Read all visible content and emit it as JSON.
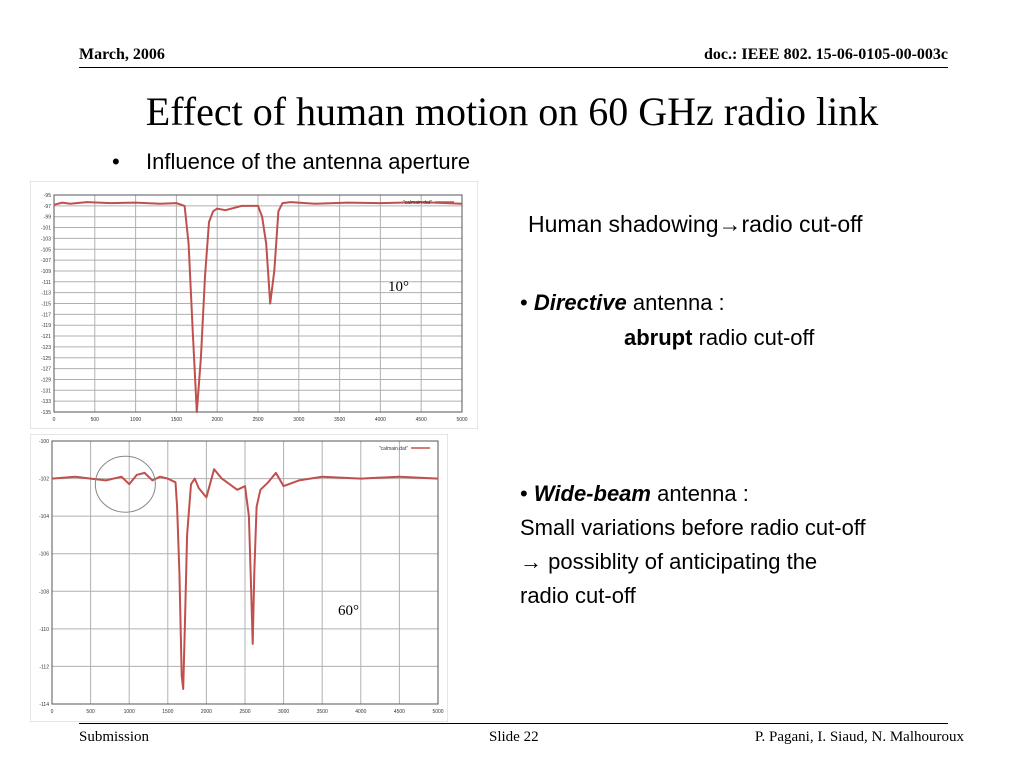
{
  "header": {
    "date": "March, 2006",
    "doc": "doc.: IEEE 802. 15-06-0105-00-003c"
  },
  "title": "Effect of human motion on 60 GHz radio link",
  "bullet": "Influence of the antenna aperture",
  "caption_human": "Human shadowing→radio cut-off",
  "directive": {
    "bold": "Directive",
    "rest": "antenna :",
    "line2_bold": "abrupt",
    "line2_rest": "radio cut-off"
  },
  "widebeam": {
    "bold": "Wide-beam",
    "rest": "antenna :",
    "line2": "Small variations before radio cut-off",
    "line3": "→ possiblity of anticipating the",
    "line4": "radio cut-off"
  },
  "footer": {
    "left": "Submission",
    "center": "Slide 22",
    "right": "P. Pagani, I. Siaud, N. Malhouroux"
  },
  "chart_data": [
    {
      "type": "line",
      "label": "10°",
      "title": "",
      "legend": "\"calmain.dat\"",
      "legend_position": "top-right",
      "grid": true,
      "xlim": [
        0,
        5000
      ],
      "xticks": [
        0,
        500,
        1000,
        1500,
        2000,
        2500,
        3000,
        3500,
        4000,
        4500,
        5000
      ],
      "ylim": [
        -135,
        -95
      ],
      "yticks": [
        -95,
        -97,
        -99,
        -101,
        -103,
        -105,
        -107,
        -109,
        -111,
        -113,
        -115,
        -117,
        -119,
        -121,
        -123,
        -125,
        -127,
        -129,
        -131,
        -133,
        -135
      ],
      "color": "#c0504d",
      "series": [
        {
          "x": [
            0,
            100,
            200,
            400,
            700,
            1000,
            1300,
            1500,
            1600,
            1650,
            1700,
            1750,
            1800,
            1850,
            1900,
            1950,
            2000,
            2100,
            2300,
            2500,
            2550,
            2600,
            2650,
            2700,
            2750,
            2800,
            2900,
            3200,
            3600,
            4000,
            4500,
            5000
          ],
          "y": [
            -96.8,
            -96.4,
            -96.6,
            -96.3,
            -96.5,
            -96.4,
            -96.6,
            -96.5,
            -97,
            -104,
            -120,
            -135,
            -125,
            -110,
            -100,
            -98,
            -97.5,
            -97.8,
            -97,
            -97,
            -99,
            -104,
            -115,
            -109,
            -98,
            -96.5,
            -96.3,
            -96.6,
            -96.4,
            -96.5,
            -96.3,
            -96.6
          ]
        }
      ]
    },
    {
      "type": "line",
      "label": "60°",
      "title": "",
      "legend": "\"calmain.dat\"",
      "legend_position": "top-right",
      "grid": true,
      "xlim": [
        0,
        5000
      ],
      "xticks": [
        0,
        500,
        1000,
        1500,
        2000,
        2500,
        3000,
        3500,
        4000,
        4500,
        5000
      ],
      "ylim": [
        -114,
        -100
      ],
      "yticks": [
        -100,
        -102,
        -104,
        -106,
        -108,
        -110,
        -112,
        -114
      ],
      "color": "#c0504d",
      "annotation": "circle around small variations before the first cut-off",
      "series": [
        {
          "x": [
            0,
            300,
            500,
            700,
            900,
            1000,
            1100,
            1200,
            1300,
            1400,
            1500,
            1600,
            1620,
            1650,
            1680,
            1700,
            1720,
            1750,
            1800,
            1850,
            1900,
            2000,
            2100,
            2200,
            2300,
            2400,
            2500,
            2550,
            2580,
            2600,
            2620,
            2650,
            2700,
            2800,
            2900,
            3000,
            3200,
            3500,
            4000,
            4500,
            5000
          ],
          "y": [
            -102,
            -101.9,
            -102,
            -102.1,
            -101.9,
            -102.3,
            -101.8,
            -101.7,
            -102.1,
            -101.9,
            -102,
            -102.2,
            -103.5,
            -107,
            -112.5,
            -113.2,
            -110,
            -105,
            -102.3,
            -102,
            -102.5,
            -103,
            -101.5,
            -102,
            -102.3,
            -102.6,
            -102.4,
            -104,
            -108,
            -110.8,
            -107,
            -103.5,
            -102.6,
            -102.2,
            -101.7,
            -102.4,
            -102.1,
            -101.9,
            -102,
            -101.9,
            -102
          ]
        }
      ]
    }
  ]
}
